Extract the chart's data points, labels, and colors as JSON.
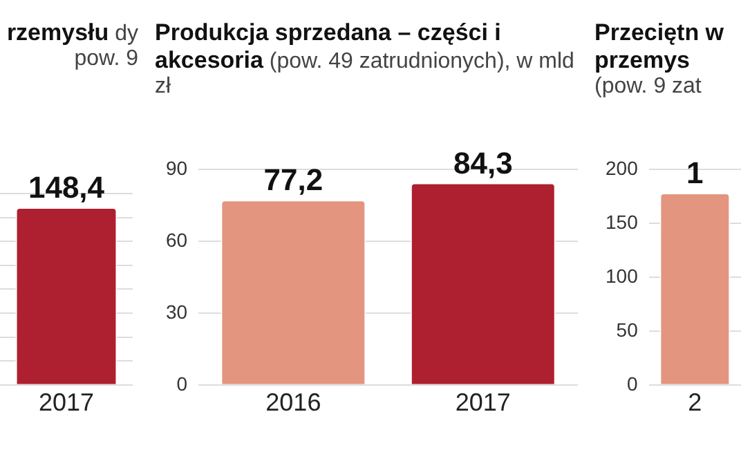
{
  "chart_data": [
    {
      "type": "bar",
      "title": "rzemysłu",
      "subtitle": "dy pow. 9",
      "categories": [
        "2017"
      ],
      "values": [
        148.4
      ],
      "colors": [
        "#ae1f30"
      ],
      "value_labels": [
        "148,4"
      ],
      "grid": "y",
      "tick_labels": "x"
    },
    {
      "type": "bar",
      "title": "Produkcja sprzedana – części i akcesoria",
      "subtitle": "(pow. 49 zatrudnionych), w mld zł",
      "categories": [
        "2016",
        "2017"
      ],
      "values": [
        77.2,
        84.3
      ],
      "colors": [
        "#e4957f",
        "#ae1f30"
      ],
      "value_labels": [
        "77,2",
        "84,3"
      ],
      "ylim": [
        0,
        90
      ],
      "yticks": [
        0,
        30,
        60,
        90
      ],
      "grid": "y"
    },
    {
      "type": "bar",
      "title": "Przeciętn w przemys",
      "subtitle": "(pow. 9 zat",
      "categories": [
        "2"
      ],
      "values": [
        178
      ],
      "colors": [
        "#e4957f"
      ],
      "annotations": [
        {
          "text": "1",
          "x": "2",
          "y": 178
        }
      ],
      "ylim": [
        0,
        200
      ],
      "yticks": [
        0,
        50,
        100,
        150,
        200
      ],
      "grid": "y"
    }
  ]
}
